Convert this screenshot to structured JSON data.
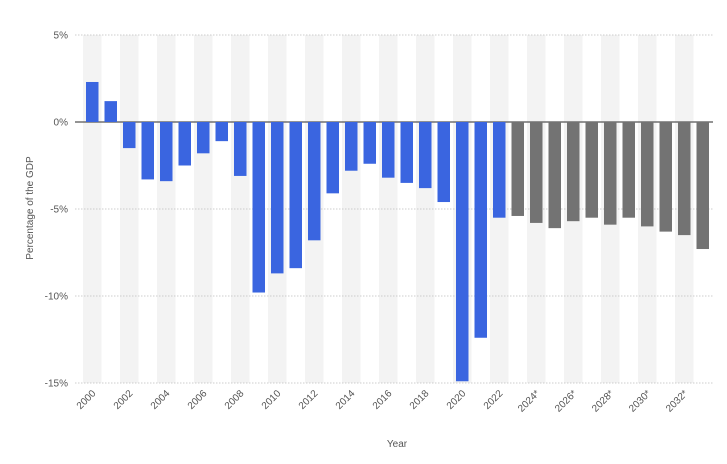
{
  "chart_data": {
    "type": "bar",
    "title": "",
    "xlabel": "Year",
    "ylabel": "Percentage of the GDP",
    "ylim": [
      -15,
      5
    ],
    "yticks": [
      5,
      0,
      -5,
      -10,
      -15
    ],
    "ytick_labels": [
      "5%",
      "0%",
      "-5%",
      "-10%",
      "-15%"
    ],
    "categories": [
      "2000",
      "2001",
      "2002",
      "2003",
      "2004",
      "2005",
      "2006",
      "2007",
      "2008",
      "2009",
      "2010",
      "2011",
      "2012",
      "2013",
      "2014",
      "2015",
      "2016",
      "2017",
      "2018",
      "2019",
      "2020",
      "2021",
      "2022",
      "2023*",
      "2024*",
      "2025*",
      "2026*",
      "2027*",
      "2028*",
      "2029*",
      "2030*",
      "2031*",
      "2032*",
      "2033*"
    ],
    "xtick_labels": [
      "2000",
      "",
      "2002",
      "",
      "2004",
      "",
      "2006",
      "",
      "2008",
      "",
      "2010",
      "",
      "2012",
      "",
      "2014",
      "",
      "2016",
      "",
      "2018",
      "",
      "2020",
      "",
      "2022",
      "",
      "2024*",
      "",
      "2026*",
      "",
      "2028*",
      "",
      "2030*",
      "",
      "2032*",
      ""
    ],
    "values": [
      2.3,
      1.2,
      -1.5,
      -3.3,
      -3.4,
      -2.5,
      -1.8,
      -1.1,
      -3.1,
      -9.8,
      -8.7,
      -8.4,
      -6.8,
      -4.1,
      -2.8,
      -2.4,
      -3.2,
      -3.5,
      -3.8,
      -4.6,
      -14.9,
      -12.4,
      -5.5,
      -5.4,
      -5.8,
      -6.1,
      -5.7,
      -5.5,
      -5.9,
      -5.5,
      -6.0,
      -6.3,
      -6.5,
      -7.3
    ],
    "projected_from_index": 23,
    "grid": true,
    "colors": {
      "actual": "#3a65e0",
      "projected": "#737373",
      "band": "#f3f3f3",
      "gridline": "#bfbfbf",
      "zero_line": "#555555",
      "text": "#555555"
    }
  }
}
